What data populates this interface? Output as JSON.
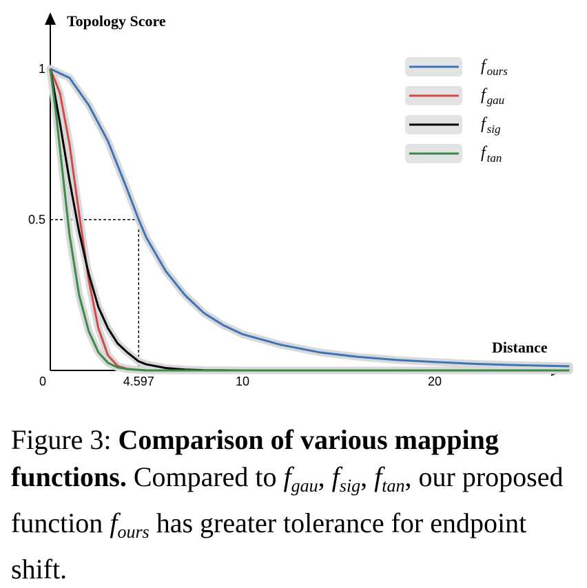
{
  "chart_data": {
    "type": "line",
    "ylabel": "Topology Score",
    "xlabel": "Distance",
    "xlim": [
      0,
      27
    ],
    "ylim": [
      0,
      1
    ],
    "x_ticks": [
      {
        "value": 0,
        "label": "0"
      },
      {
        "value": 4.597,
        "label": "4.597"
      },
      {
        "value": 10,
        "label": "10"
      },
      {
        "value": 20,
        "label": "20"
      }
    ],
    "y_ticks": [
      {
        "value": 0.5,
        "label": "0.5"
      },
      {
        "value": 1,
        "label": "1"
      }
    ],
    "reference_point": {
      "x": 4.597,
      "y": 0.5
    },
    "series": [
      {
        "key": "ours",
        "name": "f",
        "subscript": "ours",
        "color": "#3b74b9",
        "x": [
          0,
          1,
          2,
          3,
          4,
          4.597,
          5,
          6,
          7,
          8,
          9,
          10,
          12,
          14,
          16,
          18,
          20,
          22,
          24,
          26,
          27
        ],
        "y": [
          1,
          0.97,
          0.88,
          0.76,
          0.6,
          0.5,
          0.44,
          0.33,
          0.25,
          0.19,
          0.15,
          0.12,
          0.085,
          0.06,
          0.045,
          0.035,
          0.028,
          0.022,
          0.018,
          0.015,
          0.014
        ]
      },
      {
        "key": "gau",
        "name": "f",
        "subscript": "gau",
        "color": "#d04a45",
        "x": [
          0,
          0.5,
          1,
          1.5,
          2,
          2.5,
          3,
          3.5,
          4,
          5,
          6,
          8,
          10,
          20,
          27
        ],
        "y": [
          1,
          0.92,
          0.75,
          0.52,
          0.3,
          0.14,
          0.05,
          0.015,
          0.005,
          0,
          0,
          0,
          0,
          0,
          0
        ]
      },
      {
        "key": "sig",
        "name": "f",
        "subscript": "sig",
        "color": "#000000",
        "x": [
          0,
          0.5,
          1,
          1.5,
          2,
          2.5,
          3,
          3.5,
          4,
          4.597,
          5,
          6,
          7,
          8,
          10,
          20,
          27
        ],
        "y": [
          1,
          0.82,
          0.63,
          0.46,
          0.32,
          0.21,
          0.14,
          0.09,
          0.06,
          0.03,
          0.02,
          0.008,
          0.003,
          0.001,
          0,
          0,
          0
        ]
      },
      {
        "key": "tan",
        "name": "f",
        "subscript": "tan",
        "color": "#3a8a4a",
        "x": [
          0,
          0.3,
          0.6,
          1,
          1.5,
          2,
          2.5,
          3,
          3.5,
          4,
          5,
          8,
          10,
          20,
          27
        ],
        "y": [
          1,
          0.85,
          0.68,
          0.45,
          0.25,
          0.13,
          0.06,
          0.025,
          0.01,
          0.004,
          0,
          0,
          0,
          0,
          0
        ]
      }
    ]
  },
  "caption": {
    "label": "Figure 3:",
    "title": "Comparison of various mapping functions.",
    "text_before": "Compared to",
    "text_middle": "our proposed function",
    "text_after": "has greater tolerance for endpoint shift."
  }
}
